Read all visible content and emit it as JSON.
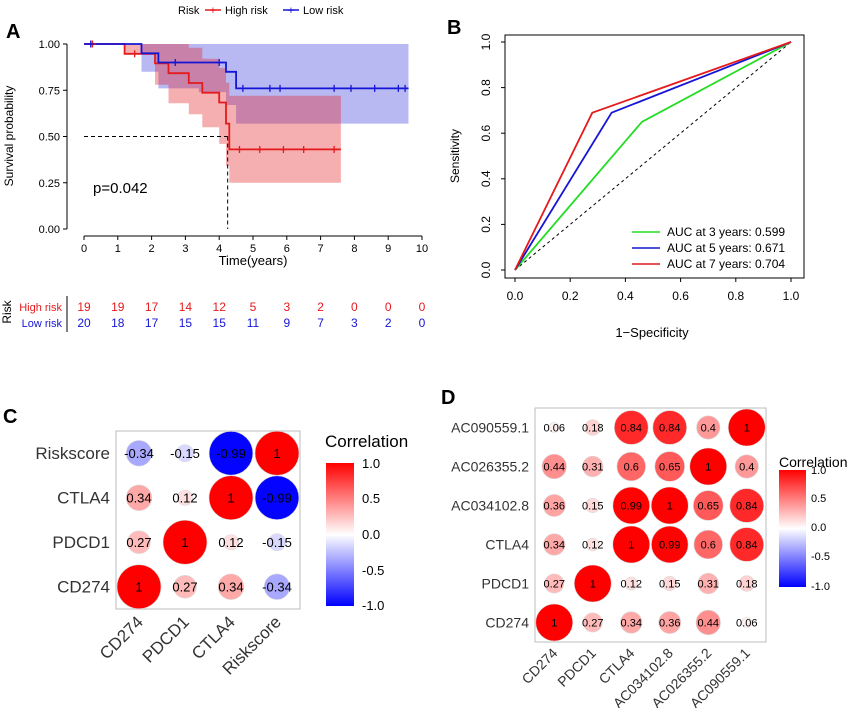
{
  "panels": {
    "A": {
      "label": "A",
      "chart_data": {
        "type": "line",
        "subtype": "kaplan-meier",
        "title": "",
        "xlabel": "Time(years)",
        "ylabel": "Survival probability",
        "xlim": [
          0,
          10
        ],
        "ylim": [
          0,
          1
        ],
        "xticks": [
          "0",
          "1",
          "2",
          "3",
          "4",
          "5",
          "6",
          "7",
          "8",
          "9",
          "10"
        ],
        "yticks": [
          "0.00",
          "0.25",
          "0.50",
          "0.75",
          "1.00"
        ],
        "legend_title": "Risk",
        "pvalue": "p=0.042",
        "median_marker": {
          "time": 4.25,
          "probability": 0.5
        },
        "series": [
          {
            "name": "High risk",
            "color": "#e41a1c",
            "steps": [
              [
                0,
                1.0
              ],
              [
                1.2,
                0.947
              ],
              [
                2.1,
                0.895
              ],
              [
                2.5,
                0.842
              ],
              [
                3.1,
                0.789
              ],
              [
                3.5,
                0.737
              ],
              [
                4.0,
                0.684
              ],
              [
                4.2,
                0.57
              ],
              [
                4.3,
                0.43
              ],
              [
                7.6,
                0.43
              ]
            ],
            "ci_upper": [
              [
                0,
                1.0
              ],
              [
                1.2,
                1.0
              ],
              [
                2.1,
                1.0
              ],
              [
                2.5,
                1.0
              ],
              [
                3.1,
                0.98
              ],
              [
                3.5,
                0.92
              ],
              [
                4.0,
                0.87
              ],
              [
                4.2,
                0.79
              ],
              [
                4.3,
                0.72
              ],
              [
                7.6,
                0.72
              ]
            ],
            "ci_lower": [
              [
                0,
                1.0
              ],
              [
                1.2,
                0.95
              ],
              [
                2.1,
                0.78
              ],
              [
                2.5,
                0.68
              ],
              [
                3.1,
                0.62
              ],
              [
                3.5,
                0.55
              ],
              [
                4.0,
                0.46
              ],
              [
                4.2,
                0.34
              ],
              [
                4.3,
                0.25
              ],
              [
                7.6,
                0.25
              ]
            ],
            "censors": [
              [
                0.25,
                1.0
              ],
              [
                1.5,
                0.947
              ],
              [
                4.6,
                0.43
              ],
              [
                5.2,
                0.43
              ],
              [
                5.9,
                0.43
              ],
              [
                6.5,
                0.43
              ],
              [
                7.4,
                0.43
              ]
            ]
          },
          {
            "name": "Low risk",
            "color": "#1515d6",
            "steps": [
              [
                0,
                1.0
              ],
              [
                1.7,
                0.95
              ],
              [
                2.2,
                0.9
              ],
              [
                2.8,
                0.9
              ],
              [
                3.4,
                0.9
              ],
              [
                4.2,
                0.85
              ],
              [
                4.5,
                0.76
              ],
              [
                9.6,
                0.76
              ]
            ],
            "ci_upper": [
              [
                0,
                1.0
              ],
              [
                1.7,
                1.0
              ],
              [
                2.2,
                1.0
              ],
              [
                4.2,
                1.0
              ],
              [
                4.5,
                1.0
              ],
              [
                9.6,
                1.0
              ]
            ],
            "ci_lower": [
              [
                0,
                1.0
              ],
              [
                1.7,
                0.85
              ],
              [
                2.2,
                0.76
              ],
              [
                2.8,
                0.76
              ],
              [
                3.4,
                0.74
              ],
              [
                4.2,
                0.67
              ],
              [
                4.5,
                0.57
              ],
              [
                9.6,
                0.57
              ]
            ],
            "censors": [
              [
                0.2,
                1.0
              ],
              [
                2.7,
                0.9
              ],
              [
                4.0,
                0.9
              ],
              [
                4.7,
                0.76
              ],
              [
                5.5,
                0.76
              ],
              [
                5.8,
                0.76
              ],
              [
                7.4,
                0.76
              ],
              [
                7.9,
                0.76
              ],
              [
                8.6,
                0.76
              ],
              [
                9.3,
                0.76
              ],
              [
                9.5,
                0.76
              ]
            ]
          }
        ],
        "risk_table": {
          "title": "Risk",
          "times": [
            0,
            1,
            2,
            3,
            4,
            5,
            6,
            7,
            8,
            9,
            10
          ],
          "rows": [
            {
              "name": "High risk",
              "color": "#e41a1c",
              "values": [
                "19",
                "19",
                "17",
                "14",
                "12",
                "5",
                "3",
                "2",
                "0",
                "0",
                "0"
              ]
            },
            {
              "name": "Low risk",
              "color": "#1515d6",
              "values": [
                "20",
                "18",
                "17",
                "15",
                "15",
                "11",
                "9",
                "7",
                "3",
                "2",
                "0"
              ]
            }
          ]
        }
      }
    },
    "B": {
      "label": "B",
      "chart_data": {
        "type": "line",
        "subtype": "roc",
        "xlabel": "1−Specificity",
        "ylabel": "Sensitivity",
        "xlim": [
          0,
          1
        ],
        "ylim": [
          0,
          1
        ],
        "xticks": [
          "0.0",
          "0.2",
          "0.4",
          "0.6",
          "0.8",
          "1.0"
        ],
        "yticks": [
          "0.0",
          "0.2",
          "0.4",
          "0.6",
          "0.8",
          "1.0"
        ],
        "legend_position": "bottom-right",
        "series": [
          {
            "name": "AUC at 3 years: 0.599",
            "color": "#22dd22",
            "x": [
              0,
              0.46,
              1.0
            ],
            "y": [
              0,
              0.65,
              1.0
            ]
          },
          {
            "name": "AUC at 5 years: 0.671",
            "color": "#1515d6",
            "x": [
              0,
              0.35,
              1.0
            ],
            "y": [
              0,
              0.69,
              1.0
            ]
          },
          {
            "name": "AUC at 7 years: 0.704",
            "color": "#e41a1c",
            "x": [
              0,
              0.28,
              1.0
            ],
            "y": [
              0,
              0.69,
              1.0
            ]
          }
        ]
      }
    },
    "C": {
      "label": "C",
      "chart_data": {
        "type": "heatmap",
        "subtype": "correlation-circles",
        "legend_title": "Correlation",
        "legend_ticks": [
          "1.0",
          "0.5",
          "0.0",
          "-0.5",
          "-1.0"
        ],
        "rows": [
          "Riskscore",
          "CTLA4",
          "PDCD1",
          "CD274"
        ],
        "cols": [
          "CD274",
          "PDCD1",
          "CTLA4",
          "Riskscore"
        ],
        "values": [
          [
            -0.34,
            -0.15,
            -0.99,
            1
          ],
          [
            0.34,
            0.12,
            1,
            -0.99
          ],
          [
            0.27,
            1,
            0.12,
            -0.15
          ],
          [
            1,
            0.27,
            0.34,
            -0.34
          ]
        ],
        "labels": [
          [
            "-0.34",
            "-0.15",
            "-0.99",
            "1"
          ],
          [
            "0.34",
            "0.12",
            "1",
            "-0.99"
          ],
          [
            "0.27",
            "1",
            "0.12",
            "-0.15"
          ],
          [
            "1",
            "0.27",
            "0.34",
            "-0.34"
          ]
        ]
      }
    },
    "D": {
      "label": "D",
      "chart_data": {
        "type": "heatmap",
        "subtype": "correlation-circles",
        "legend_title": "Correlation",
        "legend_ticks": [
          "1.0",
          "0.5",
          "0.0",
          "-0.5",
          "-1.0"
        ],
        "rows": [
          "AC090559.1",
          "AC026355.2",
          "AC034102.8",
          "CTLA4",
          "PDCD1",
          "CD274"
        ],
        "cols": [
          "CD274",
          "PDCD1",
          "CTLA4",
          "AC034102.8",
          "AC026355.2",
          "AC090559.1"
        ],
        "values": [
          [
            0.06,
            0.18,
            0.84,
            0.84,
            0.4,
            1
          ],
          [
            0.44,
            0.31,
            0.6,
            0.65,
            1,
            0.4
          ],
          [
            0.36,
            0.15,
            0.99,
            1,
            0.65,
            0.84
          ],
          [
            0.34,
            0.12,
            1,
            0.99,
            0.6,
            0.84
          ],
          [
            0.27,
            1,
            0.12,
            0.15,
            0.31,
            0.18
          ],
          [
            1,
            0.27,
            0.34,
            0.36,
            0.44,
            0.06
          ]
        ],
        "labels": [
          [
            "0.06",
            "0.18",
            "0.84",
            "0.84",
            "0.4",
            "1"
          ],
          [
            "0.44",
            "0.31",
            "0.6",
            "0.65",
            "1",
            "0.4"
          ],
          [
            "0.36",
            "0.15",
            "0.99",
            "1",
            "0.65",
            "0.84"
          ],
          [
            "0.34",
            "0.12",
            "1",
            "0.99",
            "0.6",
            "0.84"
          ],
          [
            "0.27",
            "1",
            "0.12",
            "0.15",
            "0.31",
            "0.18"
          ],
          [
            "1",
            "0.27",
            "0.34",
            "0.36",
            "0.44",
            "0.06"
          ]
        ]
      }
    }
  }
}
